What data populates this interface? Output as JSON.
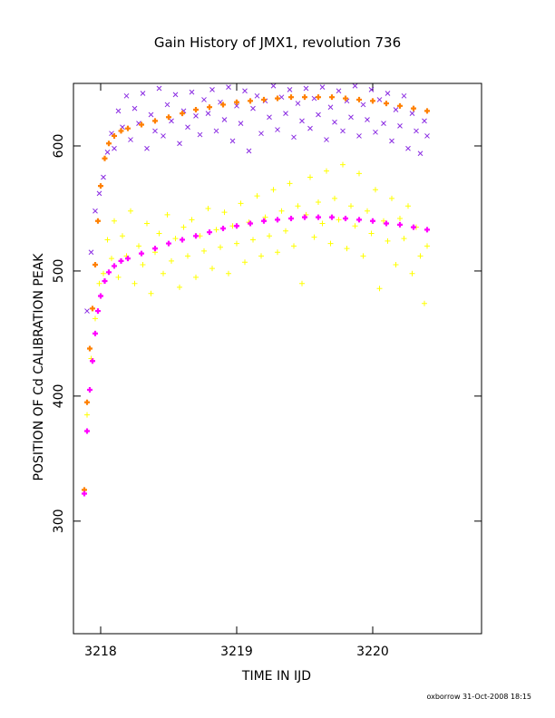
{
  "chart_data": {
    "type": "scatter",
    "title": "Gain History of JMX1, revolution 736",
    "xlabel": "TIME IN IJD",
    "ylabel": "POSITION OF Cd CALIBRATION PEAK",
    "xlim": [
      3217.8,
      3220.8
    ],
    "ylim": [
      210,
      650
    ],
    "x_ticks": [
      3218,
      3219,
      3220
    ],
    "y_ticks": [
      300,
      400,
      500,
      600
    ],
    "grid": false,
    "legend": "none",
    "footer": "oxborrow 31-Oct-2008 18:15",
    "series": [
      {
        "marker": "x",
        "color": "#8a2be2",
        "points": [
          [
            3217.9,
            468
          ],
          [
            3217.93,
            515
          ],
          [
            3217.96,
            548
          ],
          [
            3217.99,
            562
          ],
          [
            3218.02,
            575
          ],
          [
            3218.05,
            595
          ],
          [
            3218.08,
            610
          ],
          [
            3218.1,
            598
          ],
          [
            3218.13,
            628
          ],
          [
            3218.16,
            615
          ],
          [
            3218.19,
            640
          ],
          [
            3218.22,
            605
          ],
          [
            3218.25,
            630
          ],
          [
            3218.28,
            618
          ],
          [
            3218.31,
            642
          ],
          [
            3218.34,
            598
          ],
          [
            3218.37,
            625
          ],
          [
            3218.4,
            612
          ],
          [
            3218.43,
            646
          ],
          [
            3218.46,
            608
          ],
          [
            3218.49,
            633
          ],
          [
            3218.52,
            620
          ],
          [
            3218.55,
            641
          ],
          [
            3218.58,
            602
          ],
          [
            3218.61,
            628
          ],
          [
            3218.64,
            615
          ],
          [
            3218.67,
            643
          ],
          [
            3218.7,
            624
          ],
          [
            3218.73,
            609
          ],
          [
            3218.76,
            637
          ],
          [
            3218.79,
            626
          ],
          [
            3218.82,
            645
          ],
          [
            3218.85,
            612
          ],
          [
            3218.88,
            635
          ],
          [
            3218.91,
            621
          ],
          [
            3218.94,
            647
          ],
          [
            3218.97,
            604
          ],
          [
            3219.0,
            632
          ],
          [
            3219.03,
            618
          ],
          [
            3219.06,
            644
          ],
          [
            3219.09,
            596
          ],
          [
            3219.12,
            630
          ],
          [
            3219.15,
            640
          ],
          [
            3219.18,
            610
          ],
          [
            3219.21,
            636
          ],
          [
            3219.24,
            623
          ],
          [
            3219.27,
            648
          ],
          [
            3219.3,
            613
          ],
          [
            3219.33,
            639
          ],
          [
            3219.36,
            626
          ],
          [
            3219.39,
            645
          ],
          [
            3219.42,
            607
          ],
          [
            3219.45,
            634
          ],
          [
            3219.48,
            620
          ],
          [
            3219.51,
            646
          ],
          [
            3219.54,
            614
          ],
          [
            3219.57,
            638
          ],
          [
            3219.6,
            625
          ],
          [
            3219.63,
            647
          ],
          [
            3219.66,
            605
          ],
          [
            3219.69,
            631
          ],
          [
            3219.72,
            619
          ],
          [
            3219.75,
            644
          ],
          [
            3219.78,
            612
          ],
          [
            3219.81,
            636
          ],
          [
            3219.84,
            623
          ],
          [
            3219.87,
            648
          ],
          [
            3219.9,
            608
          ],
          [
            3219.93,
            633
          ],
          [
            3219.96,
            621
          ],
          [
            3219.99,
            645
          ],
          [
            3220.02,
            611
          ],
          [
            3220.05,
            637
          ],
          [
            3220.08,
            618
          ],
          [
            3220.11,
            642
          ],
          [
            3220.14,
            604
          ],
          [
            3220.17,
            629
          ],
          [
            3220.2,
            616
          ],
          [
            3220.23,
            640
          ],
          [
            3220.26,
            598
          ],
          [
            3220.29,
            626
          ],
          [
            3220.32,
            612
          ],
          [
            3220.35,
            594
          ],
          [
            3220.38,
            620
          ],
          [
            3220.4,
            608
          ]
        ]
      },
      {
        "marker": "+",
        "color": "#ffff00",
        "points": [
          [
            3217.9,
            385
          ],
          [
            3217.93,
            430
          ],
          [
            3217.96,
            462
          ],
          [
            3217.99,
            490
          ],
          [
            3218.02,
            498
          ],
          [
            3218.05,
            525
          ],
          [
            3218.08,
            510
          ],
          [
            3218.1,
            540
          ],
          [
            3218.13,
            495
          ],
          [
            3218.16,
            528
          ],
          [
            3218.19,
            512
          ],
          [
            3218.22,
            548
          ],
          [
            3218.25,
            490
          ],
          [
            3218.28,
            520
          ],
          [
            3218.31,
            505
          ],
          [
            3218.34,
            538
          ],
          [
            3218.37,
            482
          ],
          [
            3218.4,
            515
          ],
          [
            3218.43,
            530
          ],
          [
            3218.46,
            498
          ],
          [
            3218.49,
            545
          ],
          [
            3218.52,
            508
          ],
          [
            3218.55,
            526
          ],
          [
            3218.58,
            487
          ],
          [
            3218.61,
            535
          ],
          [
            3218.64,
            512
          ],
          [
            3218.67,
            541
          ],
          [
            3218.7,
            495
          ],
          [
            3218.73,
            528
          ],
          [
            3218.76,
            516
          ],
          [
            3218.79,
            550
          ],
          [
            3218.82,
            502
          ],
          [
            3218.85,
            533
          ],
          [
            3218.88,
            519
          ],
          [
            3218.91,
            547
          ],
          [
            3218.94,
            498
          ],
          [
            3218.97,
            536
          ],
          [
            3219.0,
            522
          ],
          [
            3219.03,
            554
          ],
          [
            3219.06,
            507
          ],
          [
            3219.09,
            539
          ],
          [
            3219.12,
            525
          ],
          [
            3219.15,
            560
          ],
          [
            3219.18,
            512
          ],
          [
            3219.21,
            543
          ],
          [
            3219.24,
            528
          ],
          [
            3219.27,
            565
          ],
          [
            3219.3,
            515
          ],
          [
            3219.33,
            548
          ],
          [
            3219.36,
            532
          ],
          [
            3219.39,
            570
          ],
          [
            3219.42,
            520
          ],
          [
            3219.45,
            552
          ],
          [
            3219.48,
            490
          ],
          [
            3219.51,
            545
          ],
          [
            3219.54,
            575
          ],
          [
            3219.57,
            527
          ],
          [
            3219.6,
            555
          ],
          [
            3219.63,
            538
          ],
          [
            3219.66,
            580
          ],
          [
            3219.69,
            522
          ],
          [
            3219.72,
            558
          ],
          [
            3219.75,
            541
          ],
          [
            3219.78,
            585
          ],
          [
            3219.81,
            518
          ],
          [
            3219.84,
            552
          ],
          [
            3219.87,
            536
          ],
          [
            3219.9,
            578
          ],
          [
            3219.93,
            512
          ],
          [
            3219.96,
            548
          ],
          [
            3219.99,
            530
          ],
          [
            3220.02,
            565
          ],
          [
            3220.05,
            486
          ],
          [
            3220.08,
            540
          ],
          [
            3220.11,
            524
          ],
          [
            3220.14,
            558
          ],
          [
            3220.17,
            505
          ],
          [
            3220.2,
            542
          ],
          [
            3220.23,
            526
          ],
          [
            3220.26,
            552
          ],
          [
            3220.29,
            498
          ],
          [
            3220.32,
            535
          ],
          [
            3220.35,
            512
          ],
          [
            3220.38,
            474
          ],
          [
            3220.4,
            520
          ]
        ]
      },
      {
        "marker": "+",
        "color": "#ff8000",
        "points": [
          [
            3217.88,
            325
          ],
          [
            3217.9,
            395
          ],
          [
            3217.92,
            438
          ],
          [
            3217.94,
            470
          ],
          [
            3217.96,
            505
          ],
          [
            3217.98,
            540
          ],
          [
            3218.0,
            568
          ],
          [
            3218.03,
            590
          ],
          [
            3218.06,
            602
          ],
          [
            3218.1,
            608
          ],
          [
            3218.15,
            612
          ],
          [
            3218.2,
            614
          ],
          [
            3218.3,
            617
          ],
          [
            3218.4,
            620
          ],
          [
            3218.5,
            623
          ],
          [
            3218.6,
            626
          ],
          [
            3218.7,
            629
          ],
          [
            3218.8,
            631
          ],
          [
            3218.9,
            633
          ],
          [
            3219.0,
            635
          ],
          [
            3219.1,
            636
          ],
          [
            3219.2,
            637
          ],
          [
            3219.3,
            638
          ],
          [
            3219.4,
            639
          ],
          [
            3219.5,
            639
          ],
          [
            3219.6,
            639
          ],
          [
            3219.7,
            639
          ],
          [
            3219.8,
            638
          ],
          [
            3219.9,
            637
          ],
          [
            3220.0,
            636
          ],
          [
            3220.1,
            634
          ],
          [
            3220.2,
            632
          ],
          [
            3220.3,
            630
          ],
          [
            3220.4,
            628
          ]
        ]
      },
      {
        "marker": "+",
        "color": "#ff00ff",
        "points": [
          [
            3217.88,
            322
          ],
          [
            3217.9,
            372
          ],
          [
            3217.92,
            405
          ],
          [
            3217.94,
            428
          ],
          [
            3217.96,
            450
          ],
          [
            3217.98,
            468
          ],
          [
            3218.0,
            480
          ],
          [
            3218.03,
            492
          ],
          [
            3218.06,
            499
          ],
          [
            3218.1,
            504
          ],
          [
            3218.15,
            508
          ],
          [
            3218.2,
            510
          ],
          [
            3218.3,
            514
          ],
          [
            3218.4,
            518
          ],
          [
            3218.5,
            522
          ],
          [
            3218.6,
            525
          ],
          [
            3218.7,
            528
          ],
          [
            3218.8,
            531
          ],
          [
            3218.9,
            534
          ],
          [
            3219.0,
            536
          ],
          [
            3219.1,
            538
          ],
          [
            3219.2,
            540
          ],
          [
            3219.3,
            541
          ],
          [
            3219.4,
            542
          ],
          [
            3219.5,
            543
          ],
          [
            3219.6,
            543
          ],
          [
            3219.7,
            543
          ],
          [
            3219.8,
            542
          ],
          [
            3219.9,
            541
          ],
          [
            3220.0,
            540
          ],
          [
            3220.1,
            538
          ],
          [
            3220.2,
            537
          ],
          [
            3220.3,
            535
          ],
          [
            3220.4,
            533
          ]
        ]
      }
    ]
  }
}
